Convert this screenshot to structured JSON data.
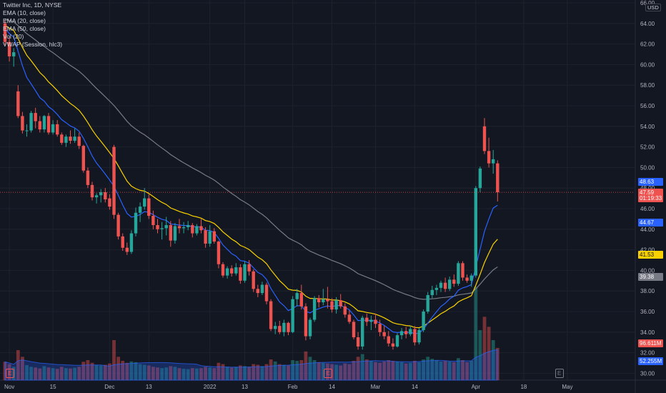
{
  "header": {
    "symbol_line": "Twitter Inc, 1D, NYSE",
    "indicators": [
      "EMA (10, close)",
      "EMA (20, close)",
      "EMA (50, close)",
      "Vol (20)",
      "VWAP (Session, hlc3)"
    ],
    "currency": "USD"
  },
  "price_axis": {
    "ticks": [
      "66.00",
      "64.00",
      "62.00",
      "60.00",
      "58.00",
      "56.00",
      "54.00",
      "52.00",
      "50.00",
      "48.00",
      "46.00",
      "44.00",
      "42.00",
      "40.00",
      "38.00",
      "36.00",
      "34.00",
      "32.00",
      "30.00"
    ],
    "tags": [
      {
        "label": "48.63",
        "value": 48.63,
        "color": "#2962ff",
        "name": "vwap-tag"
      },
      {
        "label": "47.59",
        "value": 47.59,
        "color": "#ef5350",
        "name": "last-price-tag"
      },
      {
        "label": "01:19:33",
        "value": 47.0,
        "color": "#ef5350",
        "name": "countdown-tag"
      },
      {
        "label": "44.67",
        "value": 44.67,
        "color": "#2962ff",
        "name": "ema10-tag"
      },
      {
        "label": "41.53",
        "value": 41.53,
        "color": "#f9d100",
        "name": "ema20-tag"
      },
      {
        "label": "39.38",
        "value": 39.38,
        "color": "#787b86",
        "name": "ema50-tag"
      },
      {
        "label": "96.611M",
        "value": 32.9,
        "color": "#ef5350",
        "name": "volume-tag"
      },
      {
        "label": "52.255M",
        "value": 31.2,
        "color": "#2962ff",
        "name": "volume-ma-tag"
      }
    ]
  },
  "time_axis": {
    "labels": [
      {
        "label": "Nov",
        "idx": 1
      },
      {
        "label": "15",
        "idx": 11
      },
      {
        "label": "Dec",
        "idx": 24
      },
      {
        "label": "13",
        "idx": 33
      },
      {
        "label": "2022",
        "idx": 47
      },
      {
        "label": "13",
        "idx": 55
      },
      {
        "label": "Feb",
        "idx": 66
      },
      {
        "label": "14",
        "idx": 75
      },
      {
        "label": "Mar",
        "idx": 85
      },
      {
        "label": "14",
        "idx": 94
      },
      {
        "label": "Apr",
        "idx": 108
      },
      {
        "label": "18",
        "idx": 119
      },
      {
        "label": "May",
        "idx": 129
      }
    ]
  },
  "badges": [
    {
      "label": "E",
      "idx": 1,
      "color": "#ef5350"
    },
    {
      "label": "E",
      "idx": 74,
      "color": "#ef5350"
    },
    {
      "label": "E",
      "idx": 127,
      "color": "#787b86"
    }
  ],
  "colors": {
    "up": "#26a69a",
    "down": "#ef5350",
    "ema10": "#2962ff",
    "ema20": "#f9d100",
    "ema50": "#787b86",
    "vwap": "#2962ff",
    "background": "#131722"
  },
  "chart_data": {
    "type": "candlestick",
    "title": "Twitter Inc, 1D, NYSE",
    "ylim": [
      30,
      66
    ],
    "x_start": "2021-10-28",
    "ohlc": [
      [
        64.0,
        64.3,
        61.9,
        62.2
      ],
      [
        62.2,
        62.6,
        60.3,
        60.8
      ],
      [
        60.8,
        61.6,
        59.8,
        61.2
      ],
      [
        57.4,
        58.0,
        54.8,
        55.0
      ],
      [
        55.0,
        55.4,
        53.3,
        53.6
      ],
      [
        53.6,
        54.2,
        53.0,
        53.6
      ],
      [
        53.6,
        55.5,
        53.4,
        55.3
      ],
      [
        55.3,
        55.8,
        53.8,
        54.5
      ],
      [
        54.5,
        55.0,
        53.4,
        53.7
      ],
      [
        53.7,
        55.1,
        53.4,
        55.0
      ],
      [
        55.0,
        55.3,
        53.2,
        53.4
      ],
      [
        53.4,
        54.6,
        53.2,
        54.2
      ],
      [
        54.2,
        54.6,
        53.0,
        53.2
      ],
      [
        53.2,
        53.4,
        52.2,
        52.4
      ],
      [
        52.4,
        53.2,
        52.0,
        53.0
      ],
      [
        53.0,
        53.6,
        52.3,
        52.6
      ],
      [
        52.6,
        53.8,
        52.4,
        53.0
      ],
      [
        53.0,
        53.4,
        51.8,
        52.1
      ],
      [
        52.1,
        52.2,
        49.5,
        49.7
      ],
      [
        49.7,
        50.0,
        48.0,
        48.3
      ],
      [
        48.3,
        48.6,
        46.8,
        47.1
      ],
      [
        47.1,
        47.5,
        46.5,
        47.3
      ],
      [
        47.3,
        47.9,
        46.6,
        47.6
      ],
      [
        47.6,
        48.0,
        46.6,
        46.9
      ],
      [
        47.0,
        47.4,
        45.9,
        46.2
      ],
      [
        52.0,
        52.2,
        45.0,
        45.4
      ],
      [
        45.4,
        45.6,
        43.0,
        43.3
      ],
      [
        43.3,
        43.6,
        41.9,
        42.2
      ],
      [
        42.2,
        42.7,
        41.5,
        41.8
      ],
      [
        41.8,
        43.9,
        41.6,
        43.6
      ],
      [
        43.6,
        46.1,
        43.3,
        45.6
      ],
      [
        45.6,
        46.6,
        44.7,
        46.2
      ],
      [
        46.2,
        48.0,
        45.9,
        47.0
      ],
      [
        47.0,
        47.4,
        45.0,
        45.3
      ],
      [
        45.3,
        45.8,
        44.0,
        44.4
      ],
      [
        44.4,
        45.0,
        43.6,
        44.0
      ],
      [
        44.0,
        44.7,
        43.0,
        44.1
      ],
      [
        44.1,
        45.2,
        43.4,
        44.4
      ],
      [
        44.4,
        44.8,
        42.3,
        42.9
      ],
      [
        42.9,
        44.6,
        42.6,
        44.3
      ],
      [
        44.3,
        45.0,
        43.6,
        44.1
      ],
      [
        44.1,
        44.7,
        43.6,
        44.2
      ],
      [
        44.2,
        44.8,
        43.9,
        44.4
      ],
      [
        44.4,
        44.6,
        43.2,
        43.6
      ],
      [
        43.6,
        44.5,
        43.4,
        44.3
      ],
      [
        44.3,
        45.0,
        43.6,
        43.9
      ],
      [
        43.9,
        44.2,
        42.2,
        42.6
      ],
      [
        42.6,
        44.4,
        42.3,
        43.8
      ],
      [
        43.8,
        44.1,
        42.6,
        42.8
      ],
      [
        42.8,
        42.9,
        40.2,
        40.6
      ],
      [
        40.6,
        40.8,
        39.3,
        39.5
      ],
      [
        39.5,
        40.4,
        39.2,
        40.2
      ],
      [
        40.2,
        40.5,
        39.4,
        39.7
      ],
      [
        39.7,
        40.7,
        39.5,
        40.3
      ],
      [
        40.3,
        40.6,
        38.7,
        39.0
      ],
      [
        39.0,
        40.9,
        38.8,
        40.6
      ],
      [
        40.6,
        41.0,
        39.5,
        39.9
      ],
      [
        39.9,
        40.1,
        37.9,
        38.2
      ],
      [
        38.2,
        38.6,
        37.4,
        37.8
      ],
      [
        37.8,
        38.9,
        37.6,
        38.6
      ],
      [
        38.6,
        38.8,
        36.7,
        37.0
      ],
      [
        37.0,
        37.2,
        34.1,
        34.3
      ],
      [
        34.3,
        35.0,
        33.8,
        34.6
      ],
      [
        34.6,
        35.1,
        33.8,
        34.0
      ],
      [
        34.0,
        35.2,
        33.6,
        34.9
      ],
      [
        34.9,
        35.0,
        33.7,
        34.0
      ],
      [
        34.0,
        37.5,
        33.9,
        37.2
      ],
      [
        37.2,
        38.2,
        36.5,
        37.8
      ],
      [
        37.8,
        38.6,
        36.2,
        36.5
      ],
      [
        36.5,
        36.8,
        33.2,
        33.6
      ],
      [
        33.6,
        35.4,
        33.3,
        35.2
      ],
      [
        35.2,
        37.5,
        35.0,
        37.3
      ],
      [
        37.3,
        37.6,
        36.4,
        36.9
      ],
      [
        36.9,
        38.2,
        36.6,
        37.2
      ],
      [
        37.2,
        38.4,
        36.3,
        37.0
      ],
      [
        37.0,
        37.3,
        35.9,
        36.2
      ],
      [
        36.2,
        37.4,
        35.8,
        37.1
      ],
      [
        37.1,
        37.7,
        36.3,
        36.5
      ],
      [
        36.5,
        36.8,
        35.4,
        35.7
      ],
      [
        35.7,
        36.1,
        34.8,
        35.0
      ],
      [
        35.0,
        35.2,
        33.3,
        33.5
      ],
      [
        33.5,
        34.0,
        32.3,
        32.6
      ],
      [
        32.6,
        35.6,
        32.3,
        35.4
      ],
      [
        35.4,
        35.8,
        34.6,
        35.0
      ],
      [
        35.0,
        35.6,
        34.2,
        35.2
      ],
      [
        35.2,
        35.8,
        34.4,
        34.8
      ],
      [
        34.8,
        35.2,
        33.6,
        34.0
      ],
      [
        34.0,
        34.6,
        33.3,
        33.6
      ],
      [
        33.6,
        34.1,
        32.6,
        32.9
      ],
      [
        32.9,
        33.4,
        32.3,
        32.6
      ],
      [
        32.6,
        33.9,
        32.5,
        33.7
      ],
      [
        33.7,
        34.4,
        33.3,
        34.1
      ],
      [
        34.1,
        34.5,
        33.4,
        33.8
      ],
      [
        33.8,
        34.6,
        33.6,
        34.3
      ],
      [
        34.3,
        34.6,
        32.7,
        33.0
      ],
      [
        33.0,
        34.4,
        32.8,
        34.2
      ],
      [
        34.2,
        36.2,
        34.0,
        36.0
      ],
      [
        36.0,
        37.9,
        35.8,
        37.6
      ],
      [
        37.6,
        38.5,
        37.3,
        38.1
      ],
      [
        38.1,
        38.6,
        37.6,
        38.3
      ],
      [
        38.3,
        39.0,
        37.9,
        38.8
      ],
      [
        38.8,
        39.3,
        37.9,
        38.2
      ],
      [
        38.2,
        39.4,
        38.0,
        39.1
      ],
      [
        39.1,
        39.6,
        38.4,
        38.7
      ],
      [
        38.7,
        40.9,
        38.5,
        40.7
      ],
      [
        40.7,
        40.9,
        39.0,
        39.3
      ],
      [
        39.3,
        39.6,
        38.8,
        39.0
      ],
      [
        39.0,
        39.7,
        38.4,
        39.5
      ],
      [
        39.5,
        48.2,
        39.3,
        48.0
      ],
      [
        48.0,
        50.1,
        47.6,
        49.9
      ],
      [
        54.0,
        54.8,
        51.3,
        51.6
      ],
      [
        51.6,
        52.9,
        50.0,
        50.4
      ],
      [
        50.4,
        51.7,
        49.4,
        50.8
      ],
      [
        50.4,
        50.7,
        46.7,
        47.59
      ]
    ],
    "volume_millions": [
      55,
      48,
      40,
      90,
      70,
      45,
      40,
      38,
      35,
      42,
      38,
      36,
      34,
      40,
      36,
      35,
      37,
      40,
      55,
      60,
      52,
      45,
      44,
      46,
      50,
      120,
      70,
      58,
      52,
      56,
      54,
      48,
      46,
      44,
      40,
      38,
      36,
      38,
      42,
      40,
      36,
      34,
      33,
      36,
      35,
      36,
      40,
      38,
      36,
      52,
      48,
      40,
      38,
      40,
      44,
      42,
      40,
      48,
      46,
      42,
      48,
      62,
      56,
      48,
      46,
      44,
      60,
      58,
      60,
      86,
      70,
      60,
      54,
      52,
      50,
      48,
      46,
      44,
      50,
      48,
      58,
      70,
      78,
      62,
      58,
      54,
      52,
      56,
      60,
      58,
      56,
      54,
      50,
      52,
      58,
      54,
      62,
      70,
      64,
      60,
      56,
      58,
      56,
      54,
      66,
      60,
      54,
      58,
      280,
      150,
      190,
      160,
      120,
      96.611
    ],
    "volume_ma_millions": 52.255,
    "ema_endpoints": {
      "ema10": 44.67,
      "ema20": 41.53,
      "ema50": 39.38,
      "vwap": 48.63
    }
  }
}
